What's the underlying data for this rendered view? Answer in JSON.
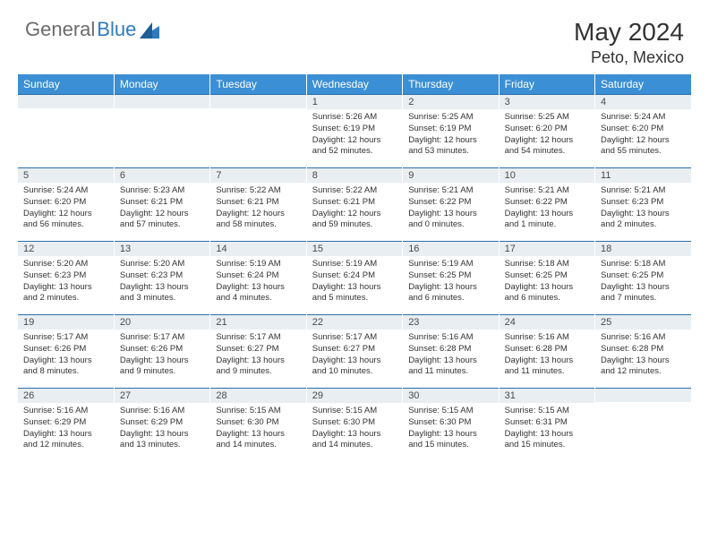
{
  "brand": {
    "part1": "General",
    "part2": "Blue",
    "color_gray": "#6b6b6b",
    "color_blue": "#2f7bbf"
  },
  "title": "May 2024",
  "location": "Peto, Mexico",
  "colors": {
    "header_bg": "#3b8fd4",
    "header_text": "#ffffff",
    "daynum_bg": "#e9eef2",
    "border_top": "#2c6fa8",
    "text": "#333333"
  },
  "weekdays": [
    "Sunday",
    "Monday",
    "Tuesday",
    "Wednesday",
    "Thursday",
    "Friday",
    "Saturday"
  ],
  "weeks": [
    [
      {
        "n": "",
        "sunrise": "",
        "sunset": "",
        "daylight": ""
      },
      {
        "n": "",
        "sunrise": "",
        "sunset": "",
        "daylight": ""
      },
      {
        "n": "",
        "sunrise": "",
        "sunset": "",
        "daylight": ""
      },
      {
        "n": "1",
        "sunrise": "Sunrise: 5:26 AM",
        "sunset": "Sunset: 6:19 PM",
        "daylight": "Daylight: 12 hours and 52 minutes."
      },
      {
        "n": "2",
        "sunrise": "Sunrise: 5:25 AM",
        "sunset": "Sunset: 6:19 PM",
        "daylight": "Daylight: 12 hours and 53 minutes."
      },
      {
        "n": "3",
        "sunrise": "Sunrise: 5:25 AM",
        "sunset": "Sunset: 6:20 PM",
        "daylight": "Daylight: 12 hours and 54 minutes."
      },
      {
        "n": "4",
        "sunrise": "Sunrise: 5:24 AM",
        "sunset": "Sunset: 6:20 PM",
        "daylight": "Daylight: 12 hours and 55 minutes."
      }
    ],
    [
      {
        "n": "5",
        "sunrise": "Sunrise: 5:24 AM",
        "sunset": "Sunset: 6:20 PM",
        "daylight": "Daylight: 12 hours and 56 minutes."
      },
      {
        "n": "6",
        "sunrise": "Sunrise: 5:23 AM",
        "sunset": "Sunset: 6:21 PM",
        "daylight": "Daylight: 12 hours and 57 minutes."
      },
      {
        "n": "7",
        "sunrise": "Sunrise: 5:22 AM",
        "sunset": "Sunset: 6:21 PM",
        "daylight": "Daylight: 12 hours and 58 minutes."
      },
      {
        "n": "8",
        "sunrise": "Sunrise: 5:22 AM",
        "sunset": "Sunset: 6:21 PM",
        "daylight": "Daylight: 12 hours and 59 minutes."
      },
      {
        "n": "9",
        "sunrise": "Sunrise: 5:21 AM",
        "sunset": "Sunset: 6:22 PM",
        "daylight": "Daylight: 13 hours and 0 minutes."
      },
      {
        "n": "10",
        "sunrise": "Sunrise: 5:21 AM",
        "sunset": "Sunset: 6:22 PM",
        "daylight": "Daylight: 13 hours and 1 minute."
      },
      {
        "n": "11",
        "sunrise": "Sunrise: 5:21 AM",
        "sunset": "Sunset: 6:23 PM",
        "daylight": "Daylight: 13 hours and 2 minutes."
      }
    ],
    [
      {
        "n": "12",
        "sunrise": "Sunrise: 5:20 AM",
        "sunset": "Sunset: 6:23 PM",
        "daylight": "Daylight: 13 hours and 2 minutes."
      },
      {
        "n": "13",
        "sunrise": "Sunrise: 5:20 AM",
        "sunset": "Sunset: 6:23 PM",
        "daylight": "Daylight: 13 hours and 3 minutes."
      },
      {
        "n": "14",
        "sunrise": "Sunrise: 5:19 AM",
        "sunset": "Sunset: 6:24 PM",
        "daylight": "Daylight: 13 hours and 4 minutes."
      },
      {
        "n": "15",
        "sunrise": "Sunrise: 5:19 AM",
        "sunset": "Sunset: 6:24 PM",
        "daylight": "Daylight: 13 hours and 5 minutes."
      },
      {
        "n": "16",
        "sunrise": "Sunrise: 5:19 AM",
        "sunset": "Sunset: 6:25 PM",
        "daylight": "Daylight: 13 hours and 6 minutes."
      },
      {
        "n": "17",
        "sunrise": "Sunrise: 5:18 AM",
        "sunset": "Sunset: 6:25 PM",
        "daylight": "Daylight: 13 hours and 6 minutes."
      },
      {
        "n": "18",
        "sunrise": "Sunrise: 5:18 AM",
        "sunset": "Sunset: 6:25 PM",
        "daylight": "Daylight: 13 hours and 7 minutes."
      }
    ],
    [
      {
        "n": "19",
        "sunrise": "Sunrise: 5:17 AM",
        "sunset": "Sunset: 6:26 PM",
        "daylight": "Daylight: 13 hours and 8 minutes."
      },
      {
        "n": "20",
        "sunrise": "Sunrise: 5:17 AM",
        "sunset": "Sunset: 6:26 PM",
        "daylight": "Daylight: 13 hours and 9 minutes."
      },
      {
        "n": "21",
        "sunrise": "Sunrise: 5:17 AM",
        "sunset": "Sunset: 6:27 PM",
        "daylight": "Daylight: 13 hours and 9 minutes."
      },
      {
        "n": "22",
        "sunrise": "Sunrise: 5:17 AM",
        "sunset": "Sunset: 6:27 PM",
        "daylight": "Daylight: 13 hours and 10 minutes."
      },
      {
        "n": "23",
        "sunrise": "Sunrise: 5:16 AM",
        "sunset": "Sunset: 6:28 PM",
        "daylight": "Daylight: 13 hours and 11 minutes."
      },
      {
        "n": "24",
        "sunrise": "Sunrise: 5:16 AM",
        "sunset": "Sunset: 6:28 PM",
        "daylight": "Daylight: 13 hours and 11 minutes."
      },
      {
        "n": "25",
        "sunrise": "Sunrise: 5:16 AM",
        "sunset": "Sunset: 6:28 PM",
        "daylight": "Daylight: 13 hours and 12 minutes."
      }
    ],
    [
      {
        "n": "26",
        "sunrise": "Sunrise: 5:16 AM",
        "sunset": "Sunset: 6:29 PM",
        "daylight": "Daylight: 13 hours and 12 minutes."
      },
      {
        "n": "27",
        "sunrise": "Sunrise: 5:16 AM",
        "sunset": "Sunset: 6:29 PM",
        "daylight": "Daylight: 13 hours and 13 minutes."
      },
      {
        "n": "28",
        "sunrise": "Sunrise: 5:15 AM",
        "sunset": "Sunset: 6:30 PM",
        "daylight": "Daylight: 13 hours and 14 minutes."
      },
      {
        "n": "29",
        "sunrise": "Sunrise: 5:15 AM",
        "sunset": "Sunset: 6:30 PM",
        "daylight": "Daylight: 13 hours and 14 minutes."
      },
      {
        "n": "30",
        "sunrise": "Sunrise: 5:15 AM",
        "sunset": "Sunset: 6:30 PM",
        "daylight": "Daylight: 13 hours and 15 minutes."
      },
      {
        "n": "31",
        "sunrise": "Sunrise: 5:15 AM",
        "sunset": "Sunset: 6:31 PM",
        "daylight": "Daylight: 13 hours and 15 minutes."
      },
      {
        "n": "",
        "sunrise": "",
        "sunset": "",
        "daylight": ""
      }
    ]
  ]
}
